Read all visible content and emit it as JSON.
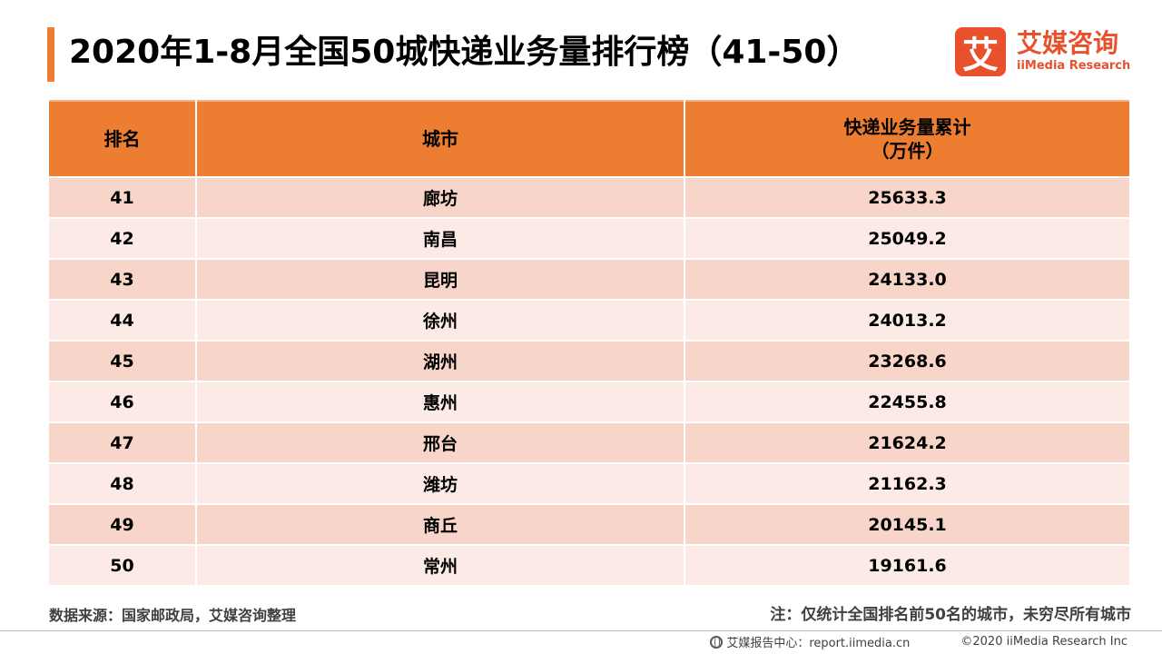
{
  "title": "2020年1-8月全国50城快递业务量排行榜（41-50）",
  "logo": {
    "mark": "艾",
    "name_cn": "艾媒咨询",
    "name_en": "iiMedia Research",
    "brand_color": "#E8512B"
  },
  "colors": {
    "header": "#ED7D31",
    "row_odd": "#F8D5C9",
    "row_even": "#FBEAE5"
  },
  "chart_data": {
    "type": "table",
    "title": "2020年1-8月全国50城快递业务量排行榜（41-50）",
    "columns": [
      "排名",
      "城市",
      "快递业务量累计（万件）"
    ],
    "header": {
      "rank": "排名",
      "city": "城市",
      "volume_line1": "快递业务量累计",
      "volume_line2": "（万件）"
    },
    "rows": [
      {
        "rank": "41",
        "city": "廊坊",
        "volume": "25633.3"
      },
      {
        "rank": "42",
        "city": "南昌",
        "volume": "25049.2"
      },
      {
        "rank": "43",
        "city": "昆明",
        "volume": "24133.0"
      },
      {
        "rank": "44",
        "city": "徐州",
        "volume": "24013.2"
      },
      {
        "rank": "45",
        "city": "湖州",
        "volume": "23268.6"
      },
      {
        "rank": "46",
        "city": "惠州",
        "volume": "22455.8"
      },
      {
        "rank": "47",
        "city": "邢台",
        "volume": "21624.2"
      },
      {
        "rank": "48",
        "city": "潍坊",
        "volume": "21162.3"
      },
      {
        "rank": "49",
        "city": "商丘",
        "volume": "20145.1"
      },
      {
        "rank": "50",
        "city": "常州",
        "volume": "19161.6"
      }
    ]
  },
  "source": "数据来源：国家邮政局，艾媒咨询整理",
  "note": "注：仅统计全国排名前50名的城市，未穷尽所有城市",
  "footer": {
    "icon": "globe-icon",
    "site": "艾媒报告中心：report.iimedia.cn",
    "copyright": "©2020  iiMedia Research  Inc"
  }
}
